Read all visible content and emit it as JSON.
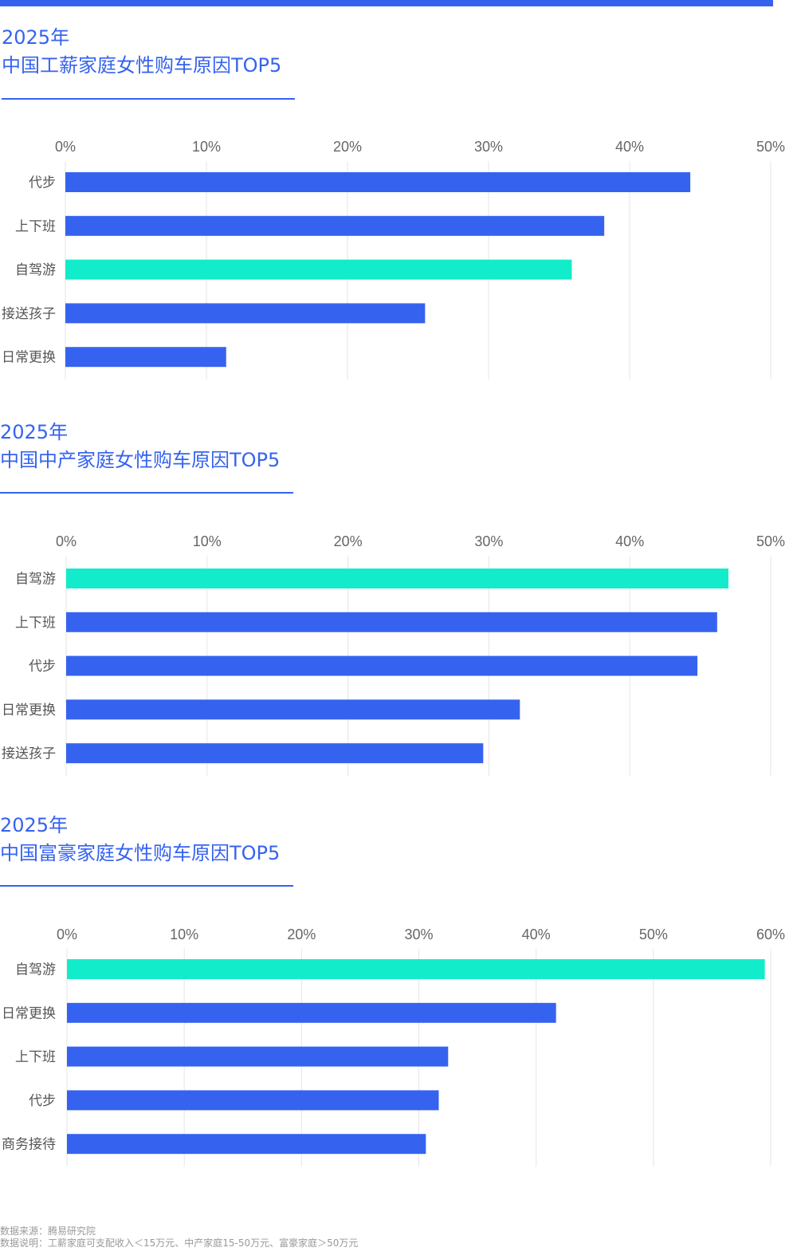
{
  "colors": {
    "primary": "#3563f0",
    "highlight": "#13ecca"
  },
  "chart_data": [
    {
      "type": "bar",
      "orientation": "horizontal",
      "year": "2025年",
      "title": "中国工薪家庭女性购车原因TOP5",
      "categories": [
        "代步",
        "上下班",
        "自驾游",
        "接送孩子",
        "日常更换"
      ],
      "values": [
        44.3,
        38.2,
        35.9,
        25.5,
        11.4
      ],
      "highlight": "自驾游",
      "xlim": [
        0,
        50
      ],
      "ticks": [
        "0%",
        "10%",
        "20%",
        "30%",
        "40%",
        "50%"
      ],
      "grid": true
    },
    {
      "type": "bar",
      "orientation": "horizontal",
      "year": "2025年",
      "title": "中国中产家庭女性购车原因TOP5",
      "categories": [
        "自驾游",
        "上下班",
        "代步",
        "日常更换",
        "接送孩子"
      ],
      "values": [
        47.0,
        46.2,
        44.8,
        32.2,
        29.6
      ],
      "highlight": "自驾游",
      "xlim": [
        0,
        50
      ],
      "ticks": [
        "0%",
        "10%",
        "20%",
        "30%",
        "40%",
        "50%"
      ],
      "grid": true
    },
    {
      "type": "bar",
      "orientation": "horizontal",
      "year": "2025年",
      "title": "中国富豪家庭女性购车原因TOP5",
      "categories": [
        "自驾游",
        "日常更换",
        "上下班",
        "代步",
        "商务接待"
      ],
      "values": [
        59.5,
        41.7,
        32.5,
        31.7,
        30.6
      ],
      "highlight": "自驾游",
      "xlim": [
        0,
        60
      ],
      "ticks": [
        "0%",
        "10%",
        "20%",
        "30%",
        "40%",
        "50%",
        "60%"
      ],
      "grid": true
    }
  ],
  "source": {
    "line1": "数据来源：腾易研究院",
    "line2": "数据说明：工薪家庭可支配收入＜15万元、中产家庭15-50万元、富豪家庭＞50万元"
  }
}
